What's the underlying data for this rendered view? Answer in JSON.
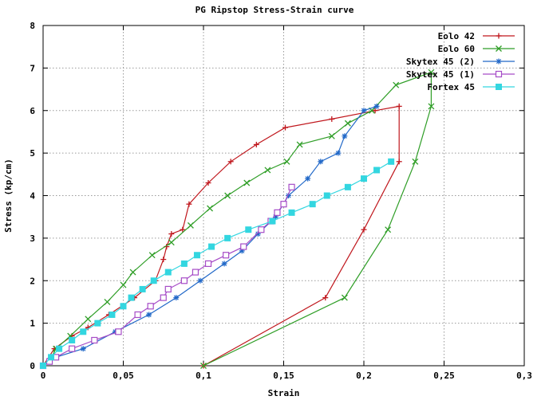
{
  "chart_data": {
    "type": "line",
    "title": "PG Ripstop Stress-Strain curve",
    "xlabel": "Strain",
    "ylabel": "Stress (kp/cm)",
    "xlim": [
      0,
      0.3
    ],
    "ylim": [
      0,
      8
    ],
    "xticks": [
      0,
      0.05,
      0.1,
      0.15,
      0.2,
      0.25,
      0.3
    ],
    "xtick_labels": [
      "0",
      "0,05",
      "0,1",
      "0,15",
      "0,2",
      "0,25",
      "0,3"
    ],
    "yticks": [
      0,
      1,
      2,
      3,
      4,
      5,
      6,
      7,
      8
    ],
    "ytick_labels": [
      "0",
      "1",
      "2",
      "3",
      "4",
      "5",
      "6",
      "7",
      "8"
    ],
    "grid": true,
    "legend_position": "top-right",
    "series": [
      {
        "name": "Eolo 42",
        "color": "#c0171d",
        "marker": "plus",
        "points": [
          [
            0,
            0
          ],
          [
            0.007,
            0.4
          ],
          [
            0.018,
            0.7
          ],
          [
            0.028,
            0.9
          ],
          [
            0.041,
            1.2
          ],
          [
            0.057,
            1.6
          ],
          [
            0.07,
            2
          ],
          [
            0.075,
            2.5
          ],
          [
            0.077,
            2.8
          ],
          [
            0.08,
            3.1
          ],
          [
            0.087,
            3.2
          ],
          [
            0.091,
            3.8
          ],
          [
            0.103,
            4.3
          ],
          [
            0.117,
            4.8
          ],
          [
            0.133,
            5.2
          ],
          [
            0.151,
            5.6
          ],
          [
            0.18,
            5.8
          ],
          [
            0.207,
            6
          ],
          [
            0.222,
            6.1
          ],
          [
            0.222,
            4.8
          ],
          [
            0.2,
            3.2
          ],
          [
            0.176,
            1.6
          ],
          [
            0.1,
            0
          ]
        ]
      },
      {
        "name": "Eolo 60",
        "color": "#2f9e27",
        "marker": "cross",
        "points": [
          [
            0,
            0
          ],
          [
            0.004,
            0.1
          ],
          [
            0.008,
            0.4
          ],
          [
            0.017,
            0.7
          ],
          [
            0.028,
            1.1
          ],
          [
            0.04,
            1.5
          ],
          [
            0.05,
            1.9
          ],
          [
            0.056,
            2.2
          ],
          [
            0.068,
            2.6
          ],
          [
            0.08,
            2.9
          ],
          [
            0.092,
            3.3
          ],
          [
            0.104,
            3.7
          ],
          [
            0.115,
            4
          ],
          [
            0.127,
            4.3
          ],
          [
            0.14,
            4.6
          ],
          [
            0.152,
            4.8
          ],
          [
            0.16,
            5.2
          ],
          [
            0.18,
            5.4
          ],
          [
            0.19,
            5.7
          ],
          [
            0.205,
            6
          ],
          [
            0.22,
            6.6
          ],
          [
            0.242,
            6.9
          ],
          [
            0.242,
            6.1
          ],
          [
            0.232,
            4.8
          ],
          [
            0.215,
            3.2
          ],
          [
            0.188,
            1.6
          ],
          [
            0.1,
            0
          ]
        ]
      },
      {
        "name": "Skytex 45 (2)",
        "color": "#2168c8",
        "marker": "star",
        "points": [
          [
            0,
            0
          ],
          [
            0.008,
            0.2
          ],
          [
            0.025,
            0.4
          ],
          [
            0.045,
            0.8
          ],
          [
            0.066,
            1.2
          ],
          [
            0.083,
            1.6
          ],
          [
            0.098,
            2
          ],
          [
            0.113,
            2.4
          ],
          [
            0.124,
            2.7
          ],
          [
            0.134,
            3.1
          ],
          [
            0.145,
            3.5
          ],
          [
            0.153,
            4
          ],
          [
            0.165,
            4.4
          ],
          [
            0.173,
            4.8
          ],
          [
            0.184,
            5
          ],
          [
            0.188,
            5.4
          ],
          [
            0.2,
            6
          ],
          [
            0.208,
            6.1
          ]
        ]
      },
      {
        "name": "Skytex 45 (1)",
        "color": "#a64cc7",
        "marker": "square-open",
        "points": [
          [
            0,
            0
          ],
          [
            0.004,
            0.1
          ],
          [
            0.008,
            0.2
          ],
          [
            0.018,
            0.4
          ],
          [
            0.032,
            0.6
          ],
          [
            0.047,
            0.8
          ],
          [
            0.059,
            1.2
          ],
          [
            0.067,
            1.4
          ],
          [
            0.075,
            1.6
          ],
          [
            0.078,
            1.8
          ],
          [
            0.088,
            2
          ],
          [
            0.095,
            2.2
          ],
          [
            0.103,
            2.4
          ],
          [
            0.114,
            2.6
          ],
          [
            0.125,
            2.8
          ],
          [
            0.136,
            3.2
          ],
          [
            0.142,
            3.4
          ],
          [
            0.146,
            3.6
          ],
          [
            0.15,
            3.8
          ],
          [
            0.155,
            4.2
          ]
        ]
      },
      {
        "name": "Fortex 45",
        "color": "#33d6e0",
        "marker": "square-filled",
        "points": [
          [
            0,
            0
          ],
          [
            0.005,
            0.2
          ],
          [
            0.01,
            0.4
          ],
          [
            0.018,
            0.6
          ],
          [
            0.025,
            0.8
          ],
          [
            0.034,
            1
          ],
          [
            0.043,
            1.2
          ],
          [
            0.05,
            1.4
          ],
          [
            0.055,
            1.6
          ],
          [
            0.062,
            1.8
          ],
          [
            0.069,
            2
          ],
          [
            0.078,
            2.2
          ],
          [
            0.088,
            2.4
          ],
          [
            0.096,
            2.6
          ],
          [
            0.105,
            2.8
          ],
          [
            0.115,
            3
          ],
          [
            0.128,
            3.2
          ],
          [
            0.143,
            3.4
          ],
          [
            0.155,
            3.6
          ],
          [
            0.168,
            3.8
          ],
          [
            0.177,
            4
          ],
          [
            0.19,
            4.2
          ],
          [
            0.2,
            4.4
          ],
          [
            0.208,
            4.6
          ],
          [
            0.217,
            4.8
          ]
        ]
      }
    ]
  }
}
